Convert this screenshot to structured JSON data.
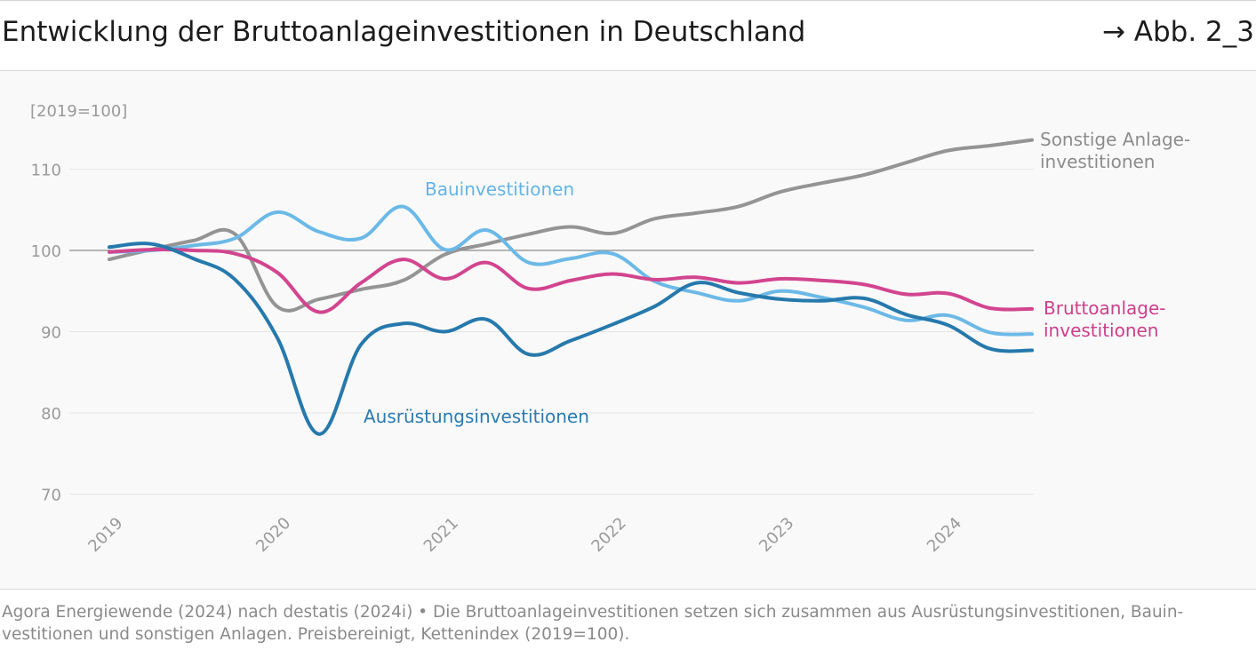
{
  "header": {
    "title": "Entwicklung der Bruttoanlageinvestitionen in Deutschland",
    "figure_ref": "→ Abb. 2_3"
  },
  "footnote": "Agora Energiewende (2024) nach destatis (2024i) • Die Bruttoanlageinvestitionen setzen sich zusammen aus Ausrüstungsinvestitionen, Bauin-vestitionen und sonstigen Anlagen. Preisbereinigt, Kettenindex (2019=100).",
  "colors": {
    "background": "#f9f9f9",
    "grid": "#e6e6e6",
    "baseline": "#8c8c8c",
    "axis_text": "#9a9a9a"
  },
  "chart_data": {
    "type": "line",
    "unit_label": "[2019=100]",
    "x_tick_labels": [
      "2019",
      "2020",
      "2021",
      "2022",
      "2023",
      "2024"
    ],
    "y_ticks": [
      70,
      80,
      90,
      100,
      110
    ],
    "ylim": [
      70,
      113
    ],
    "reference_line": 100,
    "x": [
      2019.0,
      2019.25,
      2019.5,
      2019.75,
      2020.0,
      2020.25,
      2020.5,
      2020.75,
      2021.0,
      2021.25,
      2021.5,
      2021.75,
      2022.0,
      2022.25,
      2022.5,
      2022.75,
      2023.0,
      2023.25,
      2023.5,
      2023.75,
      2024.0,
      2024.25,
      2024.5
    ],
    "series": [
      {
        "name": "Sonstige Anlage-\ninvestitionen",
        "color": "#959494",
        "label_color": "#8c8c8c",
        "values": [
          98.9,
          100.1,
          101.2,
          102.0,
          93.1,
          94.0,
          95.2,
          96.3,
          99.5,
          100.8,
          102.0,
          102.9,
          102.1,
          103.9,
          104.6,
          105.4,
          107.2,
          108.3,
          109.3,
          110.8,
          112.3,
          112.9,
          113.6
        ]
      },
      {
        "name": "Bauinvestitionen",
        "color": "#6cb9e7",
        "label_color": "#63b5e5",
        "values": [
          99.8,
          100.0,
          100.6,
          101.5,
          104.7,
          102.3,
          101.5,
          105.4,
          100.1,
          102.5,
          98.5,
          99.0,
          99.6,
          96.2,
          94.8,
          93.8,
          95.0,
          94.2,
          93.0,
          91.4,
          92.0,
          89.9,
          89.7
        ]
      },
      {
        "name": "Bruttoanlage-\ninvestitionen",
        "color": "#d2458f",
        "label_color": "#cc3f8b",
        "values": [
          99.8,
          100.1,
          100.0,
          99.6,
          97.3,
          92.4,
          96.0,
          98.9,
          96.5,
          98.5,
          95.3,
          96.3,
          97.1,
          96.4,
          96.7,
          96.0,
          96.5,
          96.3,
          95.8,
          94.6,
          94.7,
          92.9,
          92.8
        ]
      },
      {
        "name": "Ausrüstungsinvestitionen",
        "color": "#2679ac",
        "label_color": "#2a7bb0",
        "values": [
          100.4,
          100.8,
          99.0,
          96.4,
          89.3,
          77.4,
          88.4,
          91.0,
          90.0,
          91.5,
          87.2,
          88.9,
          90.9,
          93.1,
          96.0,
          94.8,
          94.0,
          93.8,
          94.1,
          92.1,
          90.8,
          87.9,
          87.7
        ]
      }
    ]
  }
}
